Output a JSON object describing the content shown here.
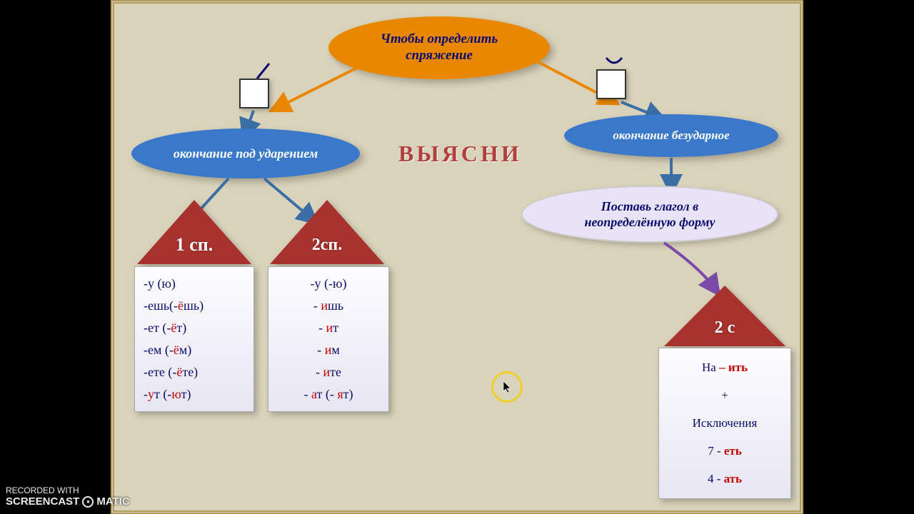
{
  "colors": {
    "stage_bg": "#dad3bb",
    "orange": "#e98800",
    "blue_ellipse": "#3a78c9",
    "blue_arrow": "#3b6ea5",
    "orange_arrow": "#e98800",
    "purple_arrow": "#7a4aa8",
    "triangle_fill": "#a8322e",
    "dark_text": "#0b0b6b",
    "red_text": "#c40000",
    "center_text": "#b0413f",
    "highlight_ring": "#f0d028"
  },
  "top": {
    "line1": "Чтобы определить",
    "line2": "спряжение"
  },
  "center_word": "ВЫЯСНИ",
  "mid_left": "окончание под ударением",
  "mid_right": "окончание безударное",
  "light_ellipse": {
    "line1": "Поставь глагол в",
    "line2": "неопределённую форму"
  },
  "house1": {
    "label": "1 сп."
  },
  "house2": {
    "label": "2сп."
  },
  "house3": {
    "label": "2 с"
  },
  "panel1_rows": [
    {
      "pre": "-у   (ю)",
      "red": ""
    },
    {
      "pre": "-ешь(-",
      "red": "ё",
      "post": "шь)"
    },
    {
      "pre": "-ет   (-",
      "red": "ё",
      "post": "т)"
    },
    {
      "pre": "-ем  (-",
      "red": "ё",
      "post": "м)"
    },
    {
      "pre": "-ете (-",
      "red": "ё",
      "post": "те)"
    },
    {
      "pre": "-",
      "red": "у",
      "post": "т  (-",
      "red2": "ю",
      "post2": "т)"
    }
  ],
  "panel2_rows": [
    {
      "pre": "-у    (-ю)"
    },
    {
      "pre": "- ",
      "red": "и",
      "post": "шь"
    },
    {
      "pre": "- ",
      "red": "и",
      "post": "т"
    },
    {
      "pre": "- ",
      "red": "и",
      "post": "м"
    },
    {
      "pre": "- ",
      "red": "и",
      "post": "те"
    },
    {
      "pre": "- ",
      "red": "а",
      "post": "т (- ",
      "red2": "я",
      "post2": "т)"
    }
  ],
  "panel3": {
    "line1_a": "На ",
    "line1_b": "– ить",
    "line2": "+",
    "line3": "Исключения",
    "line4_a": "7 - ",
    "line4_b": "еть",
    "line5_a": "4 - ",
    "line5_b": "ать"
  },
  "watermark": {
    "top": "RECORDED WITH",
    "brand_a": "SCREENCAST",
    "brand_b": "MATIC"
  }
}
